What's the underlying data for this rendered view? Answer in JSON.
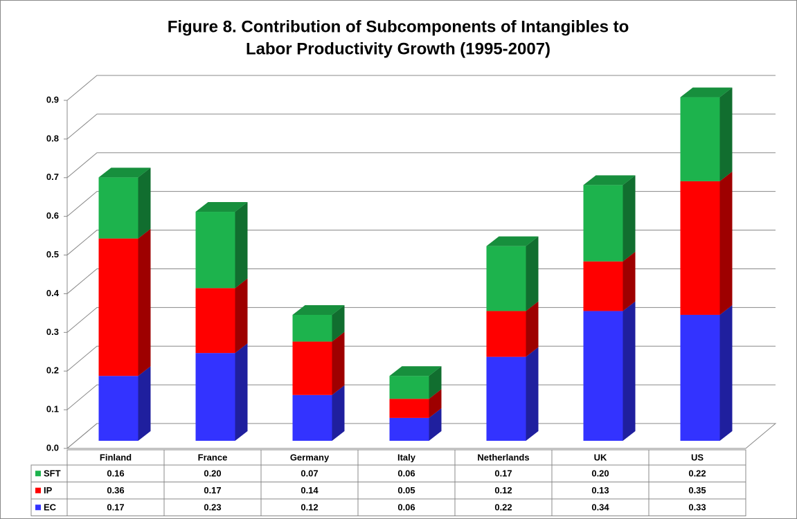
{
  "chart_data": {
    "type": "bar3d_stacked",
    "title": [
      "Figure 8. Contribution of Subcomponents of Intangibles to",
      "Labor Productivity Growth (1995-2007)"
    ],
    "categories": [
      "Finland",
      "France",
      "Germany",
      "Italy",
      "Netherlands",
      "UK",
      "US"
    ],
    "series": [
      {
        "name": "SFT",
        "color": "#1db34d",
        "values": [
          0.16,
          0.2,
          0.07,
          0.06,
          0.17,
          0.2,
          0.22
        ],
        "value_labels": [
          "0.16",
          "0.20",
          "0.07",
          "0.06",
          "0.17",
          "0.20",
          "0.22"
        ]
      },
      {
        "name": "IP",
        "color": "#ff0000",
        "values": [
          0.36,
          0.17,
          0.14,
          0.05,
          0.12,
          0.13,
          0.35
        ],
        "value_labels": [
          "0.36",
          "0.17",
          "0.14",
          "0.05",
          "0.12",
          "0.13",
          "0.35"
        ]
      },
      {
        "name": "EC",
        "color": "#3333ff",
        "values": [
          0.17,
          0.23,
          0.12,
          0.06,
          0.22,
          0.34,
          0.33
        ],
        "value_labels": [
          "0.17",
          "0.23",
          "0.12",
          "0.06",
          "0.22",
          "0.34",
          "0.33"
        ]
      }
    ],
    "ylim": [
      0,
      0.9
    ],
    "yticks": [
      {
        "value": 0,
        "label": "0.0"
      },
      0.1,
      0.2,
      0.3,
      0.4,
      0.5,
      0.6,
      0.7,
      0.8,
      0.9
    ],
    "grid": true
  }
}
